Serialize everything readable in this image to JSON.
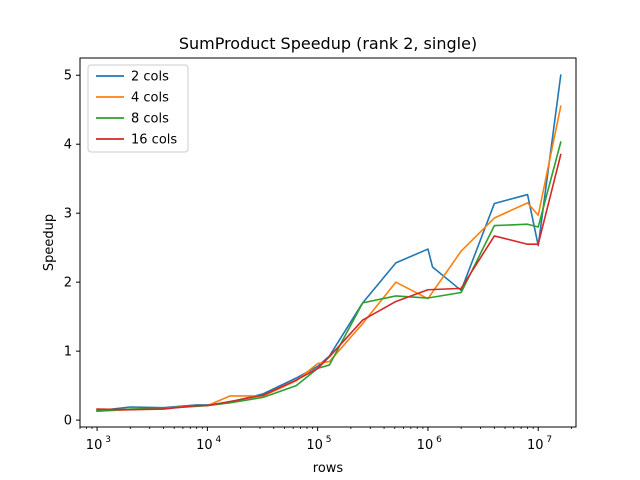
{
  "chart_data": {
    "type": "line",
    "title": "SumProduct Speedup (rank 2, single)",
    "xlabel": "rows",
    "ylabel": "Speedup",
    "xscale": "log",
    "xlim": [
      700,
      22000000
    ],
    "ylim": [
      -0.1,
      5.25
    ],
    "x_ticks": [
      {
        "value": 1000,
        "base": "10",
        "exp": "3"
      },
      {
        "value": 10000,
        "base": "10",
        "exp": "4"
      },
      {
        "value": 100000,
        "base": "10",
        "exp": "5"
      },
      {
        "value": 1000000,
        "base": "10",
        "exp": "6"
      },
      {
        "value": 10000000,
        "base": "10",
        "exp": "7"
      }
    ],
    "y_ticks": [
      0,
      1,
      2,
      3,
      4,
      5
    ],
    "legend_position": "top-left",
    "grid": false,
    "series": [
      {
        "name": "2 cols",
        "color": "#1f77b4",
        "x": [
          1000,
          1200,
          2000,
          4000,
          8000,
          10000,
          16000,
          32000,
          64000,
          100000,
          128000,
          256000,
          512000,
          1000000,
          1100000,
          2000000,
          4000000,
          8000000,
          10000000,
          16000000
        ],
        "y": [
          0.15,
          0.15,
          0.19,
          0.18,
          0.22,
          0.22,
          0.26,
          0.38,
          0.61,
          0.78,
          0.93,
          1.7,
          2.28,
          2.48,
          2.22,
          1.88,
          3.14,
          3.27,
          2.53,
          5.0
        ]
      },
      {
        "name": "4 cols",
        "color": "#ff7f0e",
        "x": [
          1000,
          2000,
          4000,
          8000,
          10000,
          16000,
          32000,
          64000,
          100000,
          128000,
          256000,
          512000,
          1000000,
          2000000,
          4000000,
          8000000,
          10000000,
          16000000
        ],
        "y": [
          0.13,
          0.15,
          0.17,
          0.21,
          0.21,
          0.35,
          0.35,
          0.57,
          0.82,
          0.85,
          1.4,
          2.0,
          1.76,
          2.45,
          2.93,
          3.15,
          2.97,
          4.55
        ]
      },
      {
        "name": "8 cols",
        "color": "#2ca02c",
        "x": [
          1000,
          2000,
          4000,
          8000,
          10000,
          16000,
          32000,
          64000,
          100000,
          128000,
          256000,
          512000,
          1000000,
          2000000,
          4000000,
          8000000,
          10000000,
          16000000
        ],
        "y": [
          0.13,
          0.16,
          0.17,
          0.2,
          0.21,
          0.25,
          0.33,
          0.5,
          0.75,
          0.8,
          1.7,
          1.8,
          1.77,
          1.85,
          2.82,
          2.84,
          2.8,
          4.03
        ]
      },
      {
        "name": "16 cols",
        "color": "#d62728",
        "x": [
          1000,
          2000,
          4000,
          8000,
          10000,
          16000,
          32000,
          64000,
          100000,
          128000,
          256000,
          512000,
          1000000,
          2000000,
          4000000,
          8000000,
          10000000,
          16000000
        ],
        "y": [
          0.16,
          0.15,
          0.16,
          0.21,
          0.21,
          0.27,
          0.36,
          0.58,
          0.75,
          0.92,
          1.45,
          1.72,
          1.89,
          1.91,
          2.67,
          2.55,
          2.55,
          3.85
        ]
      }
    ]
  }
}
